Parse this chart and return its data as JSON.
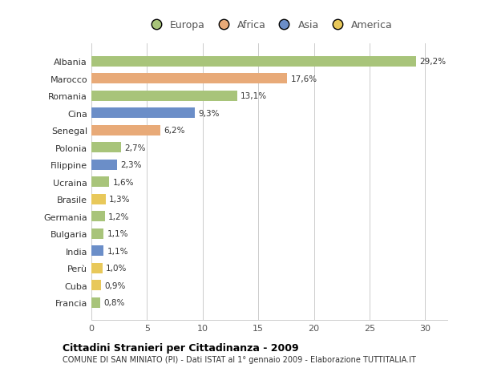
{
  "categories": [
    "Albania",
    "Marocco",
    "Romania",
    "Cina",
    "Senegal",
    "Polonia",
    "Filippine",
    "Ucraina",
    "Brasile",
    "Germania",
    "Bulgaria",
    "India",
    "Perù",
    "Cuba",
    "Francia"
  ],
  "values": [
    29.2,
    17.6,
    13.1,
    9.3,
    6.2,
    2.7,
    2.3,
    1.6,
    1.3,
    1.2,
    1.1,
    1.1,
    1.0,
    0.9,
    0.8
  ],
  "labels": [
    "29,2%",
    "17,6%",
    "13,1%",
    "9,3%",
    "6,2%",
    "2,7%",
    "2,3%",
    "1,6%",
    "1,3%",
    "1,2%",
    "1,1%",
    "1,1%",
    "1,0%",
    "0,9%",
    "0,8%"
  ],
  "colors": [
    "#a8c47a",
    "#e8aa78",
    "#a8c47a",
    "#6b8ec8",
    "#e8aa78",
    "#a8c47a",
    "#6b8ec8",
    "#a8c47a",
    "#e8c85a",
    "#a8c47a",
    "#a8c47a",
    "#6b8ec8",
    "#e8c85a",
    "#e8c85a",
    "#a8c47a"
  ],
  "continents": [
    "Europa",
    "Africa",
    "Europa",
    "Asia",
    "Africa",
    "Europa",
    "Asia",
    "Europa",
    "America",
    "Europa",
    "Europa",
    "Asia",
    "America",
    "America",
    "Europa"
  ],
  "legend_labels": [
    "Europa",
    "Africa",
    "Asia",
    "America"
  ],
  "legend_colors": [
    "#a8c47a",
    "#e8aa78",
    "#6b8ec8",
    "#e8c85a"
  ],
  "title": "Cittadini Stranieri per Cittadinanza - 2009",
  "subtitle": "COMUNE DI SAN MINIATO (PI) - Dati ISTAT al 1° gennaio 2009 - Elaborazione TUTTITALIA.IT",
  "xlim": [
    0,
    32
  ],
  "background_color": "#ffffff",
  "grid_color": "#cccccc",
  "bar_height": 0.6
}
